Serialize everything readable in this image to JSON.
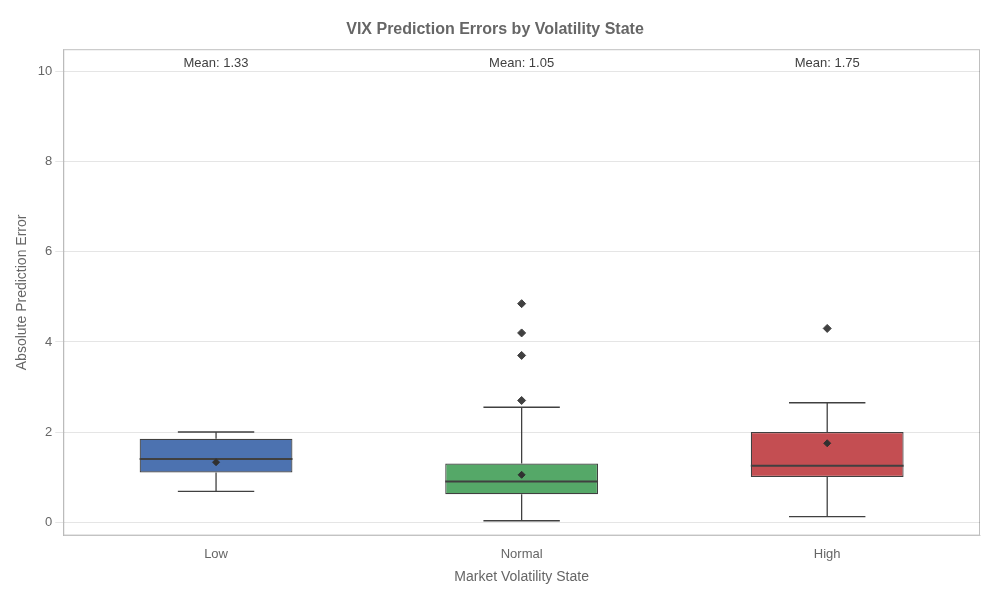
{
  "chart_data": {
    "type": "box",
    "title": "VIX Prediction Errors by Volatility State",
    "xlabel": "Market Volatility State",
    "ylabel": "Absolute Prediction Error",
    "categories": [
      "Low",
      "Normal",
      "High"
    ],
    "colors": [
      "#4c72b0",
      "#55a868",
      "#c44e52"
    ],
    "ylim": [
      -0.3,
      10.5
    ],
    "yticks": [
      0,
      2,
      4,
      6,
      8,
      10
    ],
    "grid": "y",
    "marker": "diamond",
    "boxes": [
      {
        "q1": 1.1,
        "median": 1.4,
        "q3": 1.85,
        "whislo": 0.68,
        "whishi": 2.0,
        "fliers": []
      },
      {
        "q1": 0.62,
        "median": 0.9,
        "q3": 1.3,
        "whislo": 0.03,
        "whishi": 2.55,
        "fliers": [
          2.7,
          3.7,
          4.2,
          4.85
        ]
      },
      {
        "q1": 1.0,
        "median": 1.25,
        "q3": 2.0,
        "whislo": 0.12,
        "whishi": 2.65,
        "fliers": [
          4.3
        ]
      }
    ],
    "means": [
      1.33,
      1.05,
      1.75
    ],
    "mean_labels": [
      "Mean: 1.33",
      "Mean: 1.05",
      "Mean: 1.75"
    ]
  }
}
